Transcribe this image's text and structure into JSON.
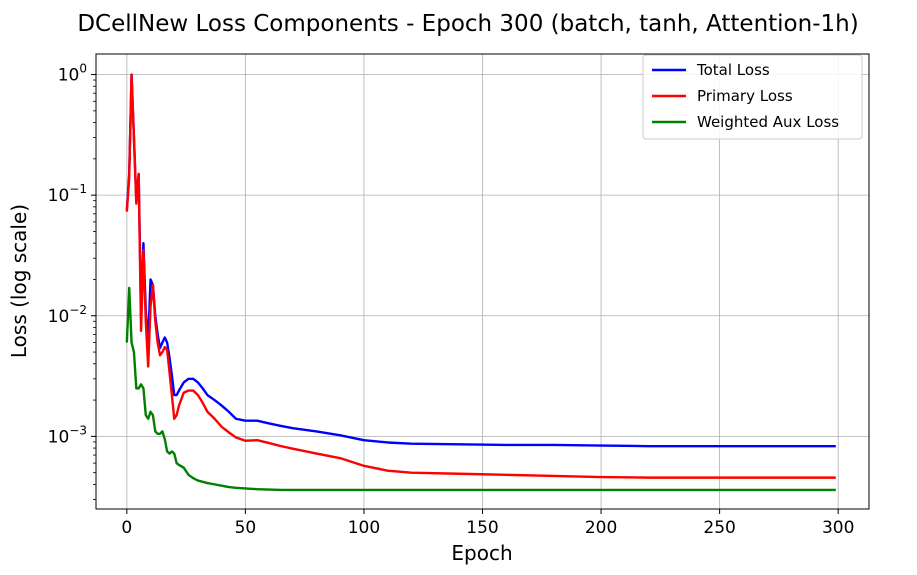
{
  "chart_data": {
    "type": "line",
    "title": "DCellNew Loss Components - Epoch 300 (batch, tanh, Attention-1h)",
    "xlabel": "Epoch",
    "ylabel": "Loss (log scale)",
    "xlim": [
      -13,
      313
    ],
    "ylim": [
      0.00025,
      1.48
    ],
    "yscale": "log",
    "grid": true,
    "legend_position": "top-right",
    "x_ticks": [
      0,
      50,
      100,
      150,
      200,
      250,
      300
    ],
    "y_ticks": [
      {
        "value": 0.001,
        "base": "10",
        "exp": "−3"
      },
      {
        "value": 0.01,
        "base": "10",
        "exp": "−2"
      },
      {
        "value": 0.1,
        "base": "10",
        "exp": "−1"
      },
      {
        "value": 1,
        "base": "10",
        "exp": "0"
      }
    ],
    "series": [
      {
        "name": "Total Loss",
        "color": "#0000ff",
        "x": [
          0,
          1,
          2,
          3,
          4,
          5,
          6,
          7,
          8,
          9,
          10,
          11,
          12,
          13,
          14,
          15,
          16,
          17,
          18,
          19,
          20,
          21,
          22,
          24,
          26,
          28,
          30,
          32,
          34,
          37,
          40,
          43,
          46,
          50,
          55,
          60,
          65,
          70,
          80,
          90,
          100,
          110,
          120,
          140,
          160,
          180,
          200,
          220,
          250,
          299
        ],
        "y": [
          0.075,
          0.15,
          1.0,
          0.3,
          0.09,
          0.15,
          0.01,
          0.04,
          0.011,
          0.006,
          0.02,
          0.018,
          0.01,
          0.007,
          0.0054,
          0.006,
          0.0066,
          0.006,
          0.0045,
          0.0032,
          0.0022,
          0.0022,
          0.0024,
          0.0028,
          0.003,
          0.003,
          0.0028,
          0.0025,
          0.0022,
          0.002,
          0.0018,
          0.0016,
          0.0014,
          0.00135,
          0.00135,
          0.00128,
          0.00122,
          0.00117,
          0.0011,
          0.00102,
          0.00093,
          0.00089,
          0.00087,
          0.00086,
          0.00085,
          0.00085,
          0.00084,
          0.00083,
          0.00083,
          0.00083
        ]
      },
      {
        "name": "Primary Loss",
        "color": "#ff0000",
        "x": [
          0,
          1,
          2,
          3,
          4,
          5,
          6,
          7,
          8,
          9,
          10,
          11,
          12,
          13,
          14,
          15,
          16,
          17,
          18,
          19,
          20,
          21,
          22,
          24,
          26,
          28,
          30,
          32,
          34,
          37,
          40,
          43,
          46,
          50,
          55,
          60,
          65,
          70,
          80,
          90,
          100,
          110,
          120,
          140,
          160,
          180,
          200,
          220,
          250,
          299
        ],
        "y": [
          0.073,
          0.14,
          1.0,
          0.3,
          0.085,
          0.15,
          0.0075,
          0.035,
          0.009,
          0.0038,
          0.012,
          0.018,
          0.009,
          0.006,
          0.0047,
          0.005,
          0.0055,
          0.0052,
          0.0034,
          0.0022,
          0.0014,
          0.0015,
          0.0018,
          0.0023,
          0.0024,
          0.0024,
          0.0022,
          0.0019,
          0.0016,
          0.0014,
          0.0012,
          0.00108,
          0.00098,
          0.00092,
          0.00093,
          0.00088,
          0.00083,
          0.00079,
          0.00072,
          0.00066,
          0.00057,
          0.00052,
          0.0005,
          0.00049,
          0.00048,
          0.00047,
          0.00046,
          0.000455,
          0.000455,
          0.000455
        ]
      },
      {
        "name": "Weighted Aux Loss",
        "color": "#008000",
        "x": [
          0,
          1,
          2,
          3,
          4,
          5,
          6,
          7,
          8,
          9,
          10,
          11,
          12,
          13,
          14,
          15,
          16,
          17,
          18,
          19,
          20,
          21,
          22,
          24,
          26,
          28,
          30,
          32,
          34,
          37,
          40,
          43,
          46,
          50,
          55,
          60,
          65,
          70,
          80,
          90,
          100,
          110,
          120,
          140,
          160,
          180,
          200,
          220,
          250,
          299
        ],
        "y": [
          0.006,
          0.017,
          0.006,
          0.005,
          0.0025,
          0.0025,
          0.0027,
          0.0025,
          0.0015,
          0.0014,
          0.0016,
          0.0015,
          0.0011,
          0.00105,
          0.00105,
          0.0011,
          0.00095,
          0.00075,
          0.00072,
          0.00075,
          0.00072,
          0.0006,
          0.00058,
          0.00055,
          0.00048,
          0.00045,
          0.00043,
          0.00042,
          0.00041,
          0.0004,
          0.00039,
          0.00038,
          0.000375,
          0.00037,
          0.000365,
          0.000362,
          0.00036,
          0.00036,
          0.00036,
          0.00036,
          0.00036,
          0.00036,
          0.00036,
          0.00036,
          0.00036,
          0.00036,
          0.00036,
          0.00036,
          0.00036,
          0.00036
        ]
      }
    ]
  }
}
